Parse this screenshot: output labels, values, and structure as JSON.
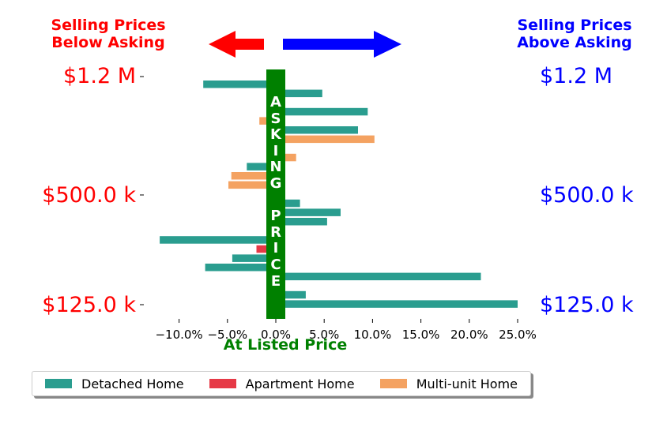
{
  "header_left": [
    "Selling Prices",
    "Below Asking"
  ],
  "header_right": [
    "Selling Prices",
    "Above Asking"
  ],
  "asking_label": "A\nS\nK\nI\nN\nG\n \nP\nR\nI\nC\nE",
  "y_labels": {
    "top": "$1.2 M",
    "mid": "$500.0 k",
    "bottom": "$125.0 k"
  },
  "colors": {
    "detached": "#2a9d8f",
    "apartment": "#e63946",
    "multi": "#f4a261",
    "below": "#ff0000",
    "above": "#0000ff",
    "asking": "#008000"
  },
  "chart_data": {
    "type": "bar",
    "orientation": "horizontal",
    "xlabel": "At Listed Price",
    "xlim": [
      -10.5,
      25.0
    ],
    "xticks": [
      "−10.0%",
      "−5.0%",
      "0.0%",
      "5.0%",
      "10.0%",
      "15.0%",
      "20.0%",
      "25.0%"
    ],
    "xtick_values": [
      -10,
      -5,
      0,
      5,
      10,
      15,
      20,
      25
    ],
    "series_names": [
      "Detached Home",
      "Apartment Home",
      "Multi-unit Home"
    ],
    "bars": [
      {
        "series": "Detached Home",
        "value": -7.5
      },
      {
        "series": "Detached Home",
        "value": 4.8
      },
      {
        "series": "Detached Home",
        "value": 0.2
      },
      {
        "series": "Detached Home",
        "value": 9.5
      },
      {
        "series": "Multi-unit Home",
        "value": -1.7
      },
      {
        "series": "Detached Home",
        "value": 8.5
      },
      {
        "series": "Multi-unit Home",
        "value": 10.2
      },
      {
        "series": "Detached Home",
        "value": 0.1
      },
      {
        "series": "Multi-unit Home",
        "value": 2.1
      },
      {
        "series": "Detached Home",
        "value": -3.0
      },
      {
        "series": "Multi-unit Home",
        "value": -4.6
      },
      {
        "series": "Multi-unit Home",
        "value": -4.9
      },
      {
        "series": "Detached Home",
        "value": 0.1
      },
      {
        "series": "Detached Home",
        "value": 2.5
      },
      {
        "series": "Detached Home",
        "value": 6.7
      },
      {
        "series": "Detached Home",
        "value": 5.3
      },
      {
        "series": "Detached Home",
        "value": 0.1
      },
      {
        "series": "Detached Home",
        "value": -12.0
      },
      {
        "series": "Apartment Home",
        "value": -2.0
      },
      {
        "series": "Detached Home",
        "value": -4.5
      },
      {
        "series": "Detached Home",
        "value": -7.3
      },
      {
        "series": "Detached Home",
        "value": 21.2
      },
      {
        "series": "Detached Home",
        "value": 0.1
      },
      {
        "series": "Detached Home",
        "value": 3.1
      },
      {
        "series": "Detached Home",
        "value": 25.0
      }
    ]
  },
  "legend": {
    "detached": "Detached Home",
    "apartment": "Apartment Home",
    "multi": "Multi-unit Home"
  }
}
